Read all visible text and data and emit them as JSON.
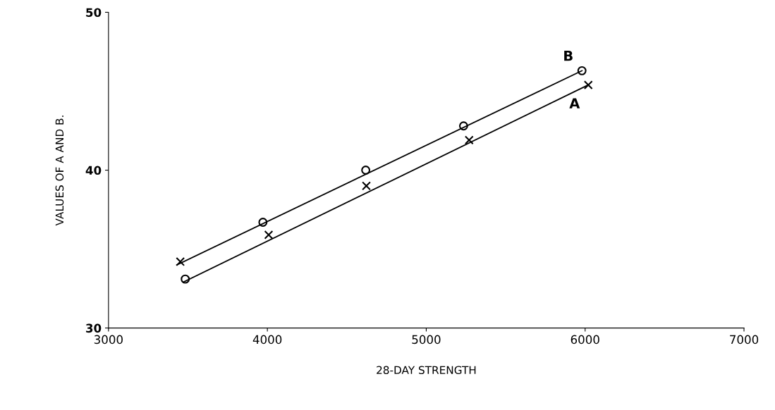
{
  "chart_data": {
    "type": "scatter",
    "xlabel": "28-DAY STRENGTH",
    "ylabel": "VALUES OF A AND B.",
    "xlim": [
      3000,
      7000
    ],
    "xticks": [
      3000,
      4000,
      5000,
      6000,
      7000
    ],
    "ylim": [
      30,
      50
    ],
    "yticks": [
      30,
      40,
      50
    ],
    "grid": false,
    "legend": false,
    "series": [
      {
        "marker": "circle",
        "color": "#000000",
        "x": [
          3483,
          3972,
          4619,
          5235,
          5980
        ],
        "values": [
          33.1,
          36.7,
          40.0,
          42.8,
          46.3
        ]
      },
      {
        "marker": "cross",
        "color": "#000000",
        "x": [
          3452,
          4008,
          4623,
          5270,
          6020
        ],
        "values": [
          34.2,
          35.9,
          39.0,
          41.9,
          45.4
        ]
      },
      {
        "type": "line",
        "name": "B",
        "color": "#000000",
        "x": [
          3430,
          5980
        ],
        "values": [
          34.0,
          46.3
        ]
      },
      {
        "type": "line",
        "name": "A",
        "color": "#000000",
        "x": [
          3470,
          6020
        ],
        "values": [
          32.9,
          45.4
        ]
      }
    ]
  }
}
